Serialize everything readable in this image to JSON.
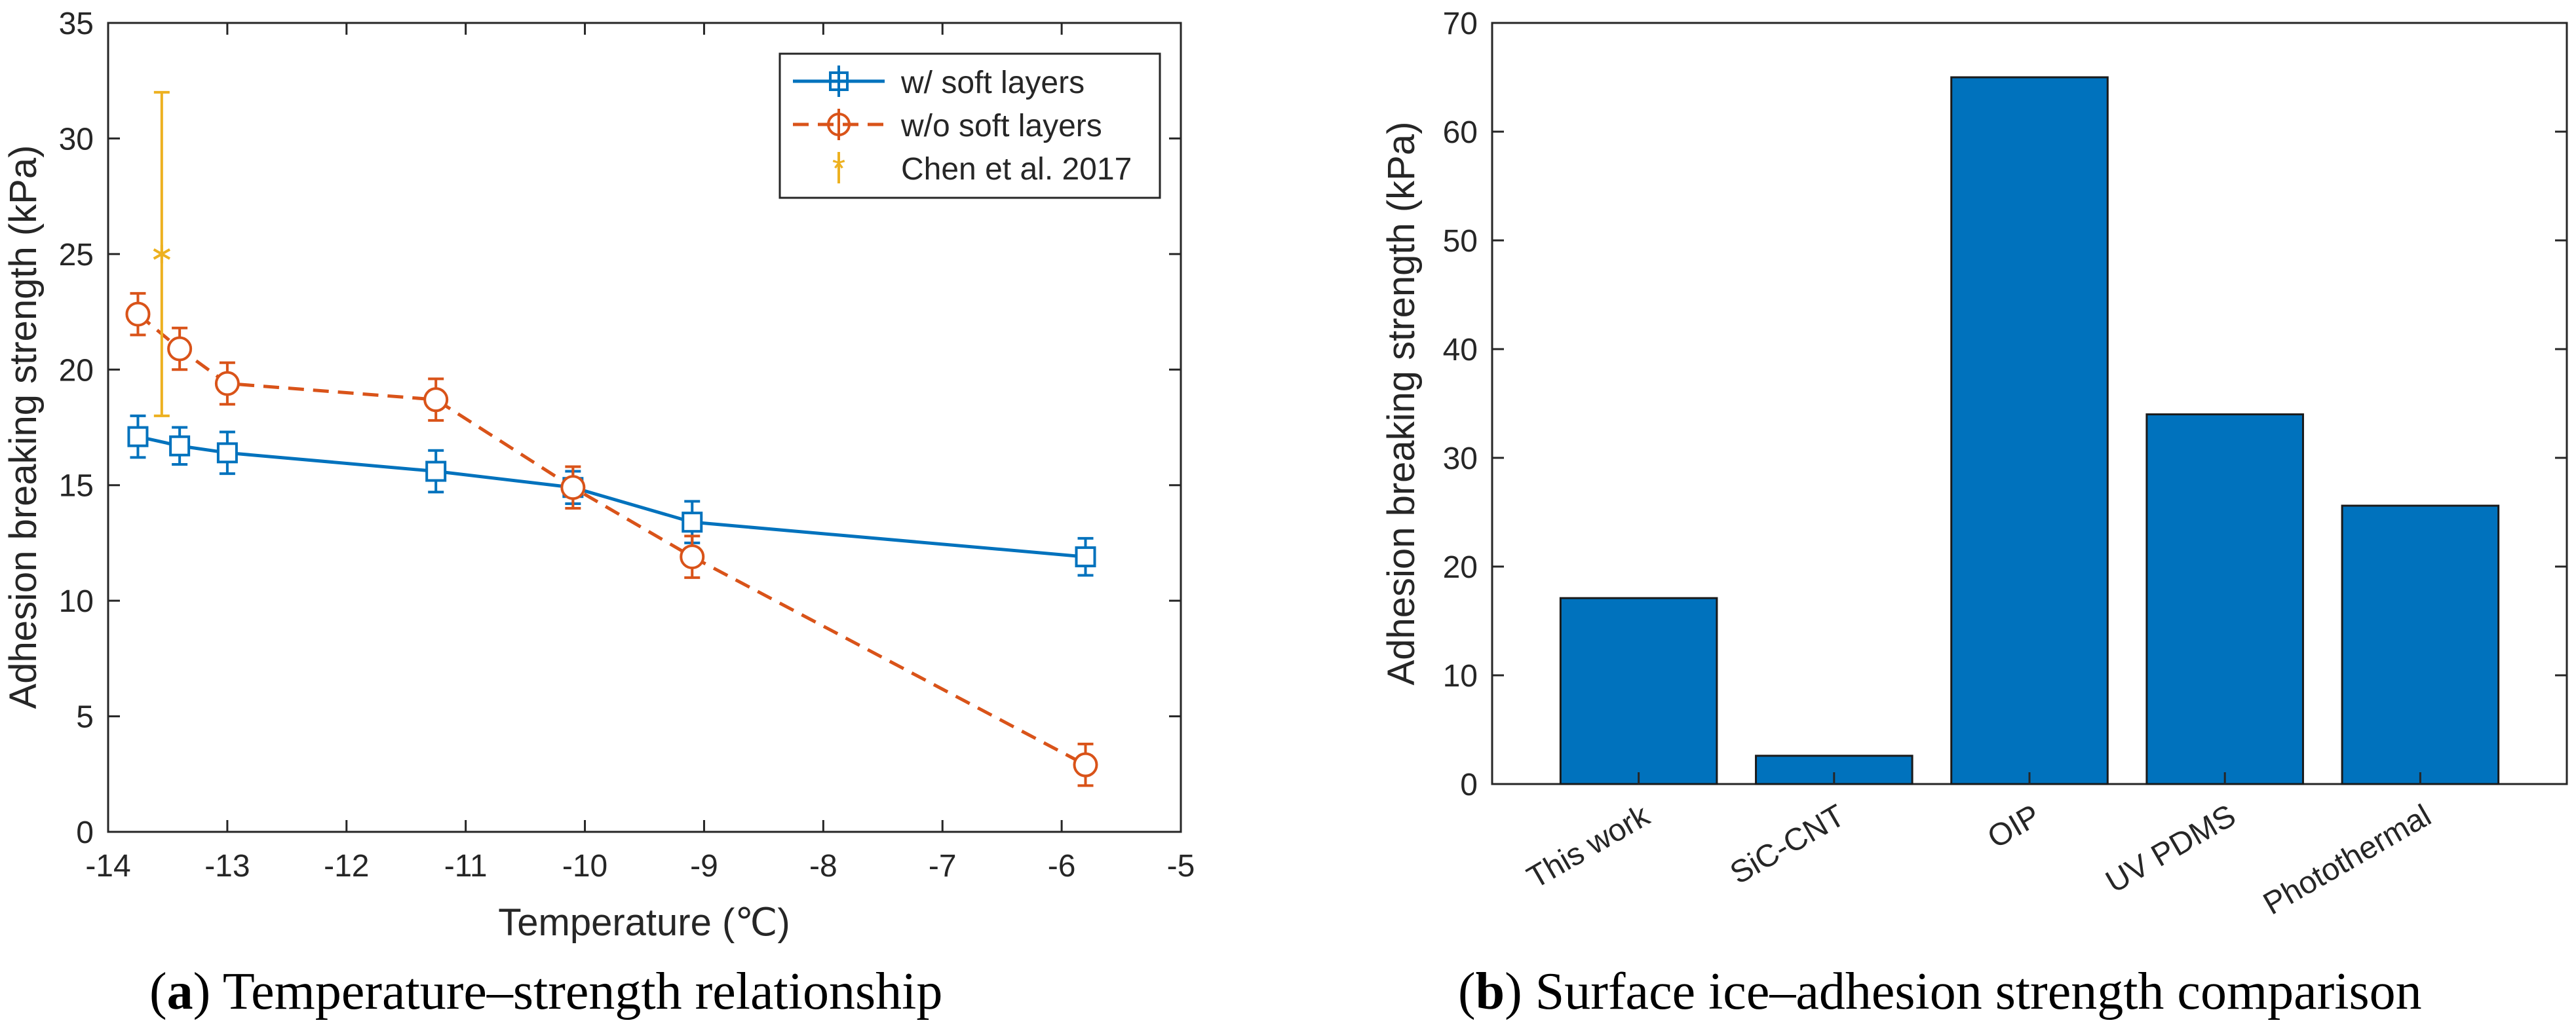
{
  "chart_data": [
    {
      "type": "line",
      "xlabel": "Temperature (℃)",
      "ylabel": "Adhesion breaking strength (kPa)",
      "xlim": [
        -14,
        -5
      ],
      "ylim": [
        0,
        35
      ],
      "xticks": [
        -14,
        -13,
        -12,
        -11,
        -10,
        -9,
        -8,
        -7,
        -6,
        -5
      ],
      "yticks": [
        0,
        5,
        10,
        15,
        20,
        25,
        30,
        35
      ],
      "grid": false,
      "legend_position": "top-right",
      "series": [
        {
          "name": "w/ soft layers",
          "color": "#0072BD",
          "line_style": "solid",
          "marker": "square",
          "x": [
            -13.75,
            -13.4,
            -13.0,
            -11.25,
            -10.1,
            -9.1,
            -5.8
          ],
          "y": [
            17.1,
            16.7,
            16.4,
            15.6,
            14.9,
            13.4,
            11.9
          ],
          "err": [
            0.9,
            0.8,
            0.9,
            0.9,
            0.7,
            0.9,
            0.8
          ]
        },
        {
          "name": "w/o soft layers",
          "color": "#D95319",
          "line_style": "dashed",
          "marker": "circle",
          "x": [
            -13.75,
            -13.4,
            -13.0,
            -11.25,
            -10.1,
            -9.1,
            -5.8
          ],
          "y": [
            22.4,
            20.9,
            19.4,
            18.7,
            14.9,
            11.9,
            2.9
          ],
          "err": [
            0.9,
            0.9,
            0.9,
            0.9,
            0.9,
            0.9,
            0.9
          ]
        },
        {
          "name": "Chen et al. 2017",
          "color": "#EDB120",
          "line_style": "none",
          "marker": "asterisk",
          "x": [
            -13.55
          ],
          "y": [
            25
          ],
          "err_low": [
            7
          ],
          "err_high": [
            7
          ]
        }
      ]
    },
    {
      "type": "bar",
      "xlabel": "",
      "ylabel": "Adhesion breaking strength (kPa)",
      "ylim": [
        0,
        70
      ],
      "yticks": [
        0,
        10,
        20,
        30,
        40,
        50,
        60,
        70
      ],
      "grid": false,
      "color": "#0072BD",
      "categories": [
        "This work",
        "SiC-CNT",
        "OIP",
        "UV PDMS",
        "Photothermal"
      ],
      "values": [
        17.1,
        2.6,
        65,
        34,
        25.6
      ]
    }
  ],
  "captions": {
    "a": {
      "label": "a",
      "text": ") Temperature–strength relationship"
    },
    "b": {
      "label": "b",
      "text": ") Surface ice–adhesion strength comparison"
    }
  }
}
